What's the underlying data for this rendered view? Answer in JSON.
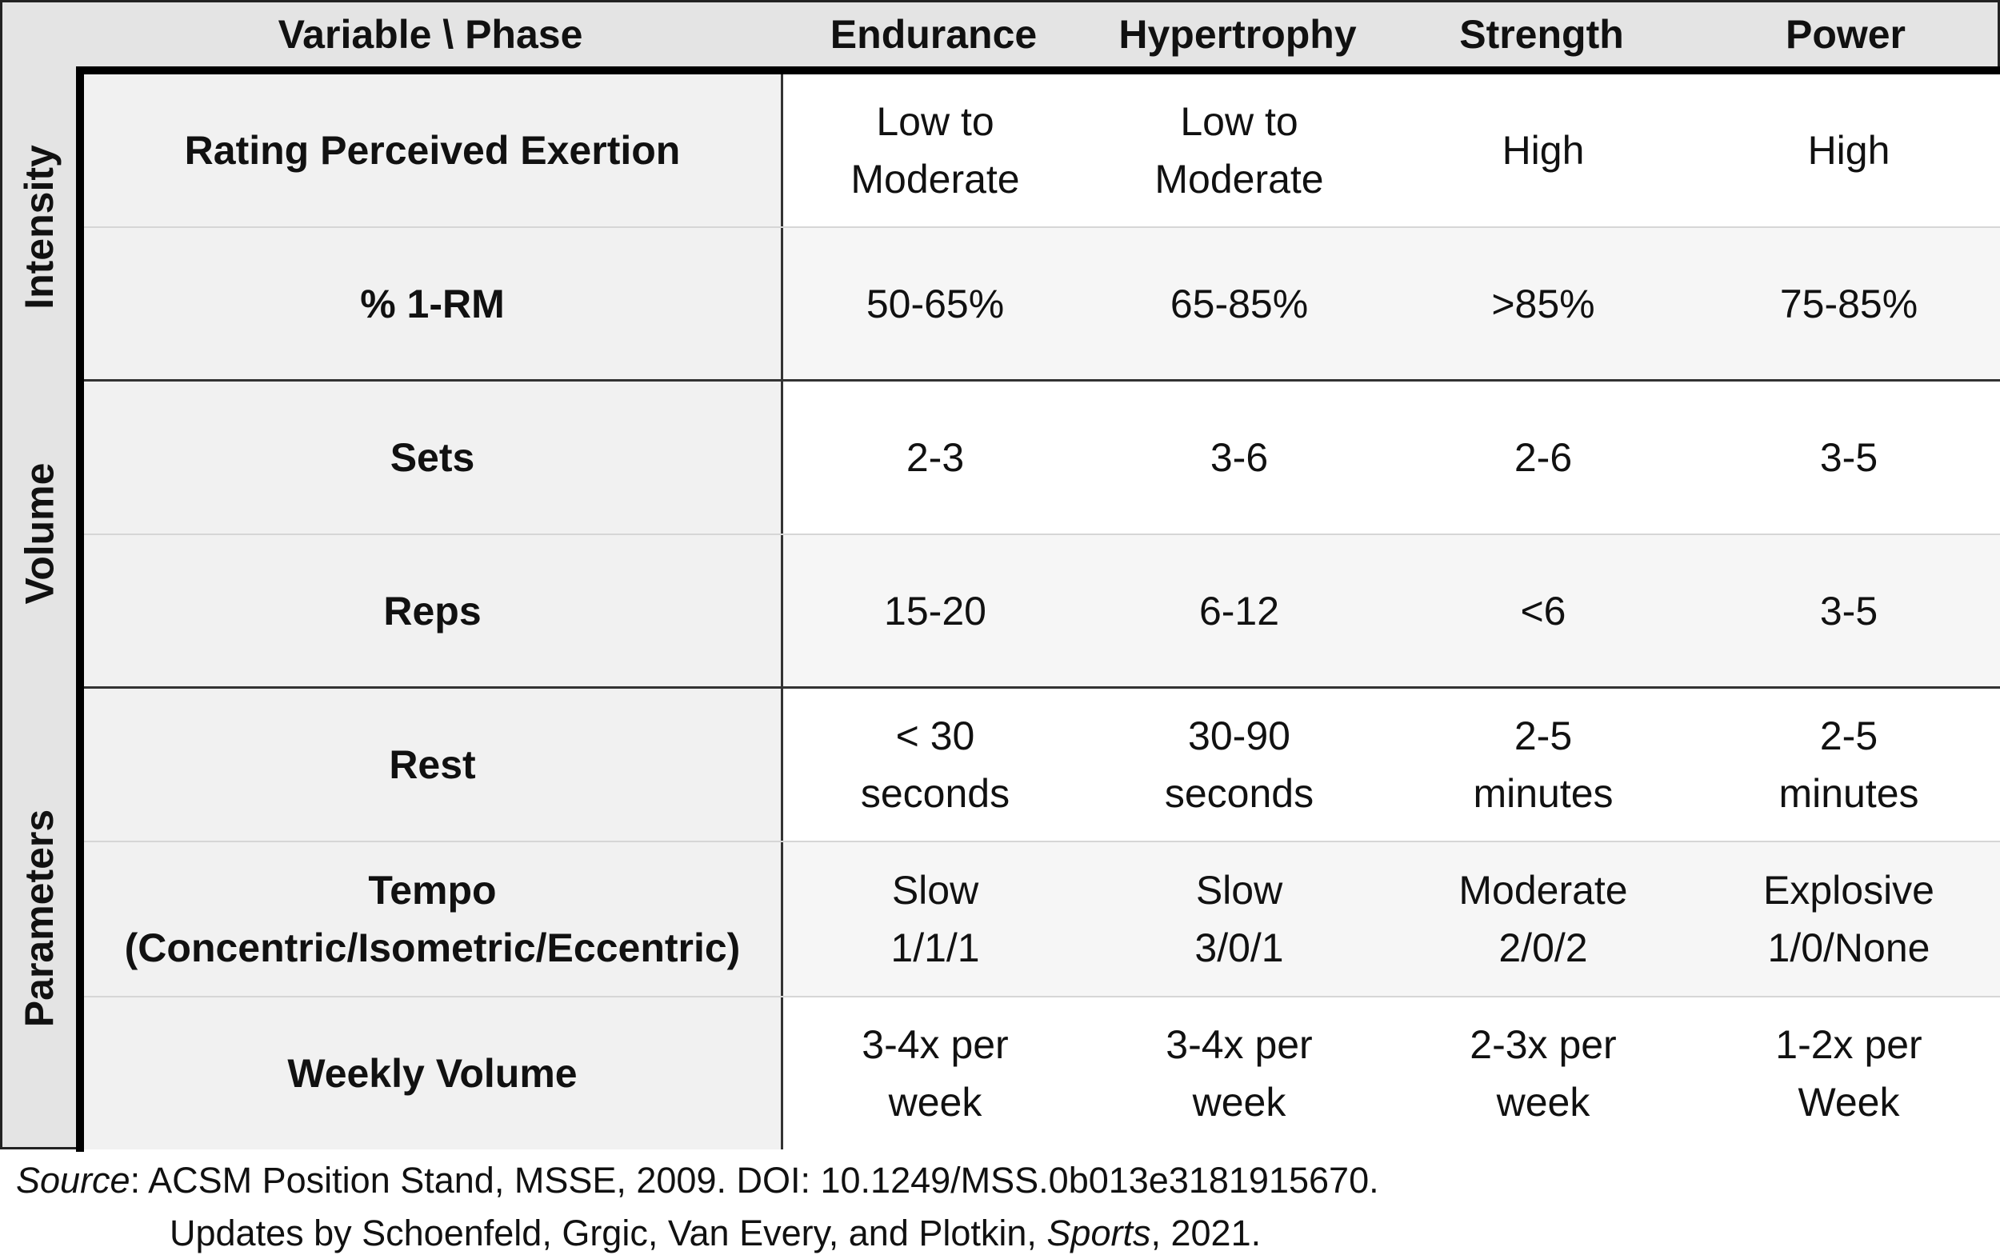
{
  "header": {
    "corner": "Variable \\ Phase",
    "phases": [
      "Endurance",
      "Hypertrophy",
      "Strength",
      "Power"
    ]
  },
  "groups": [
    "Intensity",
    "Volume",
    "Parameters"
  ],
  "rows": [
    {
      "label": "Rating Perceived Exertion",
      "values": [
        "Low to\nModerate",
        "Low to\nModerate",
        "High",
        "High"
      ]
    },
    {
      "label": "% 1-RM",
      "values": [
        "50-65%",
        "65-85%",
        ">85%",
        "75-85%"
      ]
    },
    {
      "label": "Sets",
      "values": [
        "2-3",
        "3-6",
        "2-6",
        "3-5"
      ]
    },
    {
      "label": "Reps",
      "values": [
        "15-20",
        "6-12",
        "<6",
        "3-5"
      ]
    },
    {
      "label": "Rest",
      "values": [
        "< 30\nseconds",
        "30-90\nseconds",
        "2-5\nminutes",
        "2-5\nminutes"
      ]
    },
    {
      "label": "Tempo\n(Concentric/Isometric/Eccentric)",
      "values": [
        "Slow\n1/1/1",
        "Slow\n3/0/1",
        "Moderate\n2/0/2",
        "Explosive\n1/0/None"
      ]
    },
    {
      "label": "Weekly Volume",
      "values": [
        "3-4x per\nweek",
        "3-4x per\nweek",
        "2-3x per\nweek",
        "1-2x per\nWeek"
      ]
    }
  ],
  "footnote": {
    "source_label": "Source",
    "line1_rest": ": ACSM Position Stand, MSSE, 2009. DOI: 10.1249/MSS.0b013e3181915670.",
    "line2_pre": "Updates by Schoenfeld, Grgic, Van Every, and Plotkin, ",
    "line2_journal": "Sports",
    "line2_post": ", 2021."
  }
}
